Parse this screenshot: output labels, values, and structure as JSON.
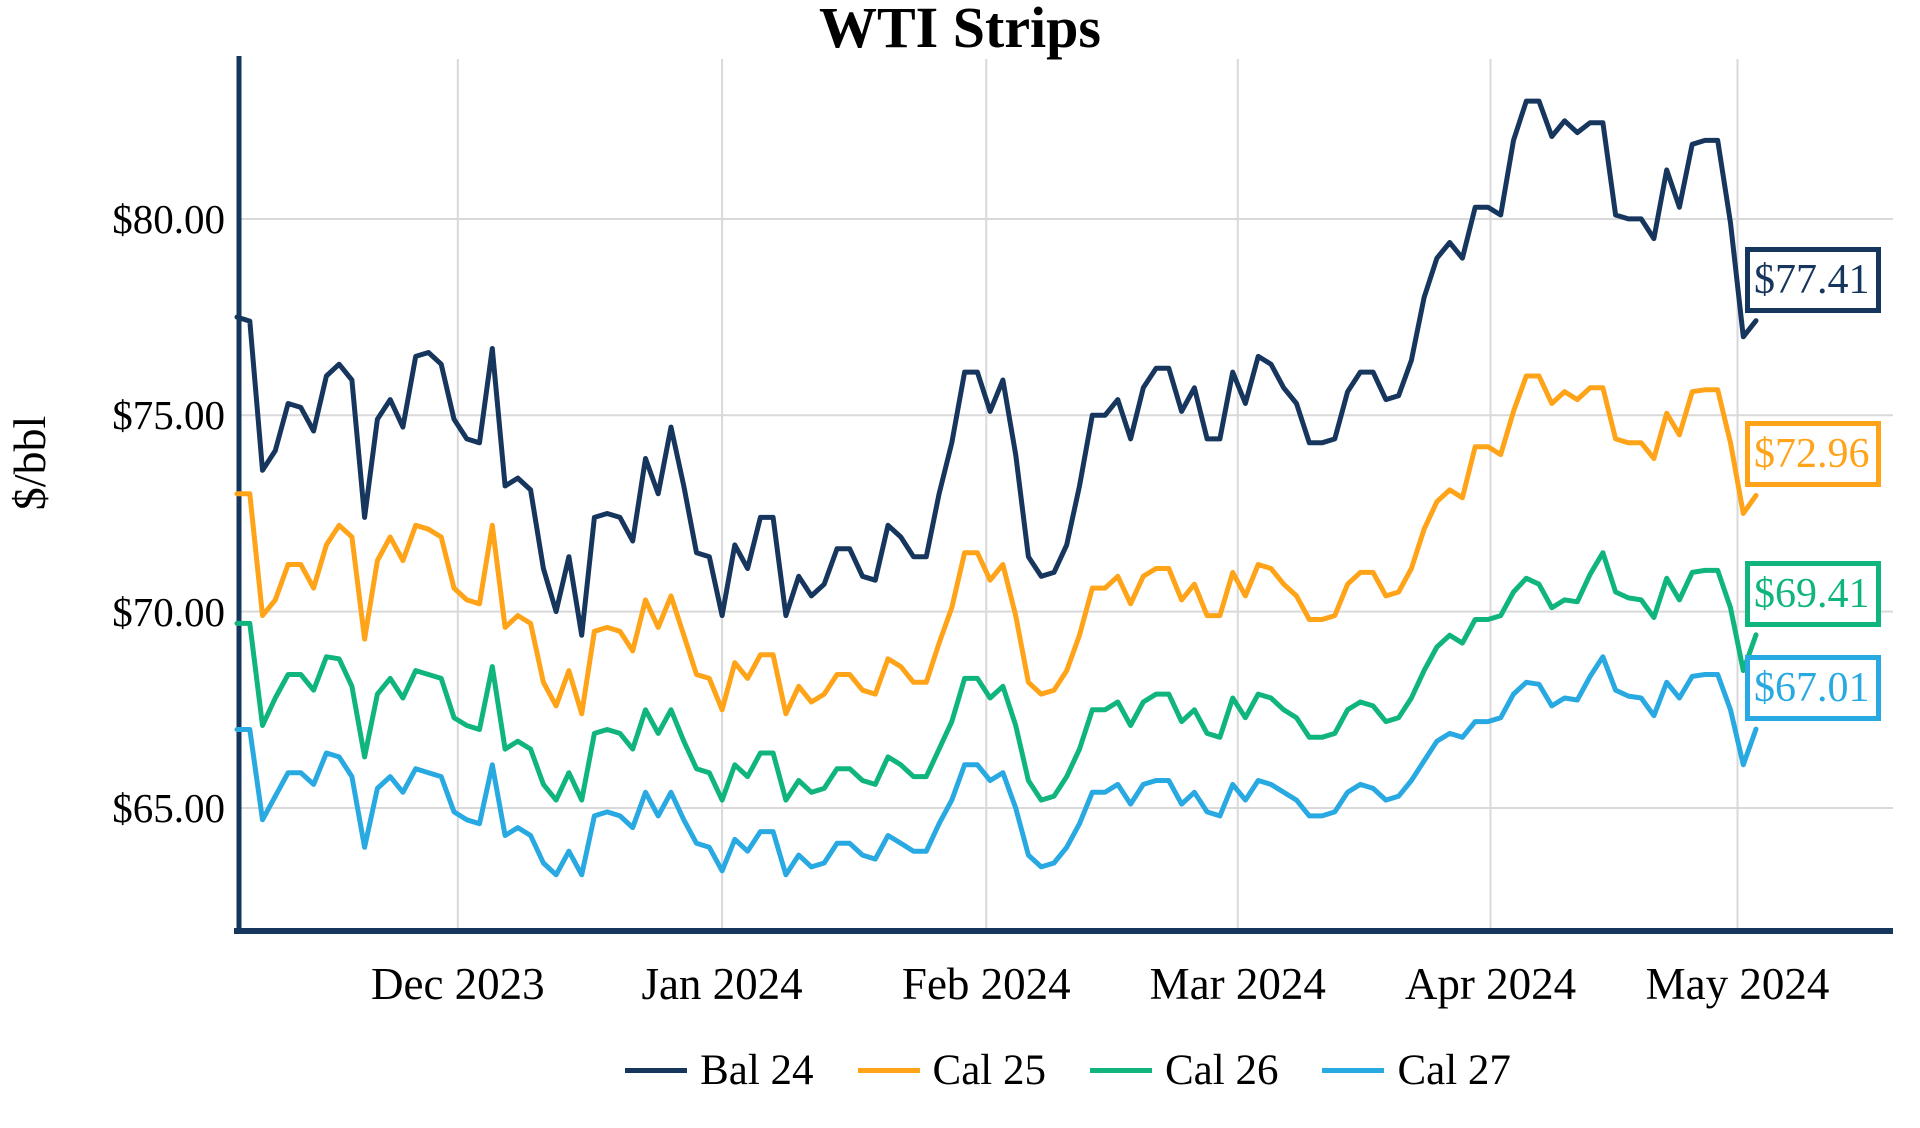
{
  "chart_data": {
    "type": "line",
    "title": "WTI Strips",
    "ylabel": "$/bbl",
    "background": "#FFFFFF",
    "grid": true,
    "grid_color": "#D9D9D9",
    "axis_color": "#17365D",
    "legend_position": "bottom",
    "ylim": [
      61.9,
      84.1
    ],
    "x_count": 120,
    "y_ticks": [
      {
        "label": "$80.00",
        "value": 80
      },
      {
        "label": "$75.00",
        "value": 75
      },
      {
        "label": "$70.00",
        "value": 70
      },
      {
        "label": "$65.00",
        "value": 65
      }
    ],
    "x_ticks": [
      {
        "label": "Dec 2023",
        "pos": 17.3
      },
      {
        "label": "Jan 2024",
        "pos": 38.0
      },
      {
        "label": "Feb 2024",
        "pos": 58.7
      },
      {
        "label": "Mar 2024",
        "pos": 78.4
      },
      {
        "label": "Apr 2024",
        "pos": 98.2
      },
      {
        "label": "May 2024",
        "pos": 117.55
      }
    ],
    "series": [
      {
        "name": "Bal 24",
        "color": "#17365D",
        "end_label": "$77.41",
        "end_value": 77.41,
        "values": [
          77.5,
          77.4,
          73.6,
          74.1,
          75.3,
          75.2,
          74.6,
          76.0,
          76.3,
          75.9,
          72.4,
          74.9,
          75.4,
          74.7,
          76.5,
          76.6,
          76.3,
          74.9,
          74.4,
          74.3,
          76.7,
          73.2,
          73.4,
          73.1,
          71.1,
          70.0,
          71.4,
          69.4,
          72.4,
          72.5,
          72.4,
          71.8,
          73.9,
          73.0,
          74.7,
          73.2,
          71.5,
          71.4,
          69.9,
          71.7,
          71.1,
          72.4,
          72.4,
          69.9,
          70.9,
          70.4,
          70.7,
          71.6,
          71.6,
          70.9,
          70.8,
          72.2,
          71.9,
          71.4,
          71.4,
          73.0,
          74.3,
          76.1,
          76.1,
          75.1,
          75.9,
          74.0,
          71.4,
          70.9,
          71.0,
          71.7,
          73.2,
          75.0,
          75.0,
          75.4,
          74.4,
          75.7,
          76.2,
          76.2,
          75.1,
          75.7,
          74.4,
          74.4,
          76.1,
          75.3,
          76.5,
          76.3,
          75.7,
          75.3,
          74.3,
          74.3,
          74.4,
          75.6,
          76.1,
          76.1,
          75.4,
          75.5,
          76.4,
          78.0,
          79.0,
          79.4,
          79.0,
          80.3,
          80.3,
          80.1,
          82.0,
          83.0,
          83.0,
          82.1,
          82.5,
          82.2,
          82.45,
          82.45,
          80.1,
          80.0,
          80.0,
          79.5,
          81.25,
          80.3,
          81.9,
          82.0,
          82.0,
          79.9,
          77.0,
          77.41
        ]
      },
      {
        "name": "Cal 25",
        "color": "#FFA318",
        "end_label": "$72.96",
        "end_value": 72.96,
        "values": [
          73.0,
          73.0,
          69.9,
          70.3,
          71.2,
          71.2,
          70.6,
          71.7,
          72.2,
          71.9,
          69.3,
          71.3,
          71.9,
          71.3,
          72.2,
          72.1,
          71.9,
          70.6,
          70.3,
          70.2,
          72.2,
          69.6,
          69.9,
          69.7,
          68.2,
          67.6,
          68.5,
          67.4,
          69.5,
          69.6,
          69.5,
          69.0,
          70.3,
          69.6,
          70.4,
          69.4,
          68.4,
          68.3,
          67.5,
          68.7,
          68.3,
          68.9,
          68.9,
          67.4,
          68.1,
          67.7,
          67.9,
          68.4,
          68.4,
          68.0,
          67.9,
          68.8,
          68.6,
          68.2,
          68.2,
          69.2,
          70.1,
          71.5,
          71.5,
          70.8,
          71.2,
          69.9,
          68.2,
          67.9,
          68.0,
          68.5,
          69.4,
          70.6,
          70.6,
          70.9,
          70.2,
          70.9,
          71.1,
          71.1,
          70.3,
          70.7,
          69.9,
          69.9,
          71.0,
          70.4,
          71.2,
          71.1,
          70.7,
          70.4,
          69.8,
          69.8,
          69.9,
          70.7,
          71.0,
          71.0,
          70.4,
          70.5,
          71.1,
          72.1,
          72.8,
          73.1,
          72.9,
          74.2,
          74.2,
          74.0,
          75.1,
          76.0,
          76.0,
          75.3,
          75.6,
          75.4,
          75.7,
          75.7,
          74.4,
          74.3,
          74.3,
          73.9,
          75.05,
          74.5,
          75.6,
          75.65,
          75.65,
          74.3,
          72.5,
          72.96
        ]
      },
      {
        "name": "Cal 26",
        "color": "#10B57E",
        "end_label": "$69.41",
        "end_value": 69.41,
        "values": [
          69.7,
          69.7,
          67.1,
          67.8,
          68.4,
          68.4,
          68.0,
          68.85,
          68.8,
          68.1,
          66.3,
          67.9,
          68.3,
          67.8,
          68.5,
          68.4,
          68.3,
          67.3,
          67.1,
          67.0,
          68.6,
          66.5,
          66.7,
          66.5,
          65.6,
          65.2,
          65.9,
          65.2,
          66.9,
          67.0,
          66.9,
          66.5,
          67.5,
          66.9,
          67.5,
          66.7,
          66.0,
          65.9,
          65.2,
          66.1,
          65.8,
          66.4,
          66.4,
          65.2,
          65.7,
          65.4,
          65.5,
          66.0,
          66.0,
          65.7,
          65.6,
          66.3,
          66.1,
          65.8,
          65.8,
          66.5,
          67.2,
          68.3,
          68.3,
          67.8,
          68.1,
          67.1,
          65.7,
          65.2,
          65.3,
          65.8,
          66.5,
          67.5,
          67.5,
          67.7,
          67.1,
          67.7,
          67.9,
          67.9,
          67.2,
          67.5,
          66.9,
          66.8,
          67.8,
          67.3,
          67.9,
          67.8,
          67.5,
          67.3,
          66.8,
          66.8,
          66.9,
          67.5,
          67.7,
          67.6,
          67.2,
          67.3,
          67.8,
          68.5,
          69.1,
          69.4,
          69.2,
          69.8,
          69.8,
          69.9,
          70.5,
          70.85,
          70.7,
          70.1,
          70.3,
          70.25,
          70.95,
          71.5,
          70.5,
          70.35,
          70.3,
          69.85,
          70.85,
          70.3,
          71.0,
          71.05,
          71.05,
          70.1,
          68.5,
          69.41
        ]
      },
      {
        "name": "Cal 27",
        "color": "#29A9E1",
        "end_label": "$67.01",
        "end_value": 67.01,
        "values": [
          67.0,
          67.0,
          64.7,
          65.3,
          65.9,
          65.9,
          65.6,
          66.4,
          66.3,
          65.8,
          64.0,
          65.5,
          65.8,
          65.4,
          66.0,
          65.9,
          65.8,
          64.9,
          64.7,
          64.6,
          66.1,
          64.3,
          64.5,
          64.3,
          63.6,
          63.3,
          63.9,
          63.3,
          64.8,
          64.9,
          64.8,
          64.5,
          65.4,
          64.8,
          65.4,
          64.7,
          64.1,
          64.0,
          63.4,
          64.2,
          63.9,
          64.4,
          64.4,
          63.3,
          63.8,
          63.5,
          63.6,
          64.1,
          64.1,
          63.8,
          63.7,
          64.3,
          64.1,
          63.9,
          63.9,
          64.6,
          65.2,
          66.1,
          66.1,
          65.7,
          65.9,
          65.0,
          63.8,
          63.5,
          63.6,
          64.0,
          64.6,
          65.4,
          65.4,
          65.6,
          65.1,
          65.6,
          65.7,
          65.7,
          65.1,
          65.4,
          64.9,
          64.8,
          65.6,
          65.2,
          65.7,
          65.6,
          65.4,
          65.2,
          64.8,
          64.8,
          64.9,
          65.4,
          65.6,
          65.5,
          65.2,
          65.3,
          65.7,
          66.2,
          66.7,
          66.9,
          66.8,
          67.2,
          67.2,
          67.3,
          67.9,
          68.2,
          68.15,
          67.6,
          67.8,
          67.75,
          68.35,
          68.85,
          68.0,
          67.85,
          67.8,
          67.35,
          68.2,
          67.8,
          68.35,
          68.4,
          68.4,
          67.5,
          66.1,
          67.01
        ]
      }
    ]
  }
}
